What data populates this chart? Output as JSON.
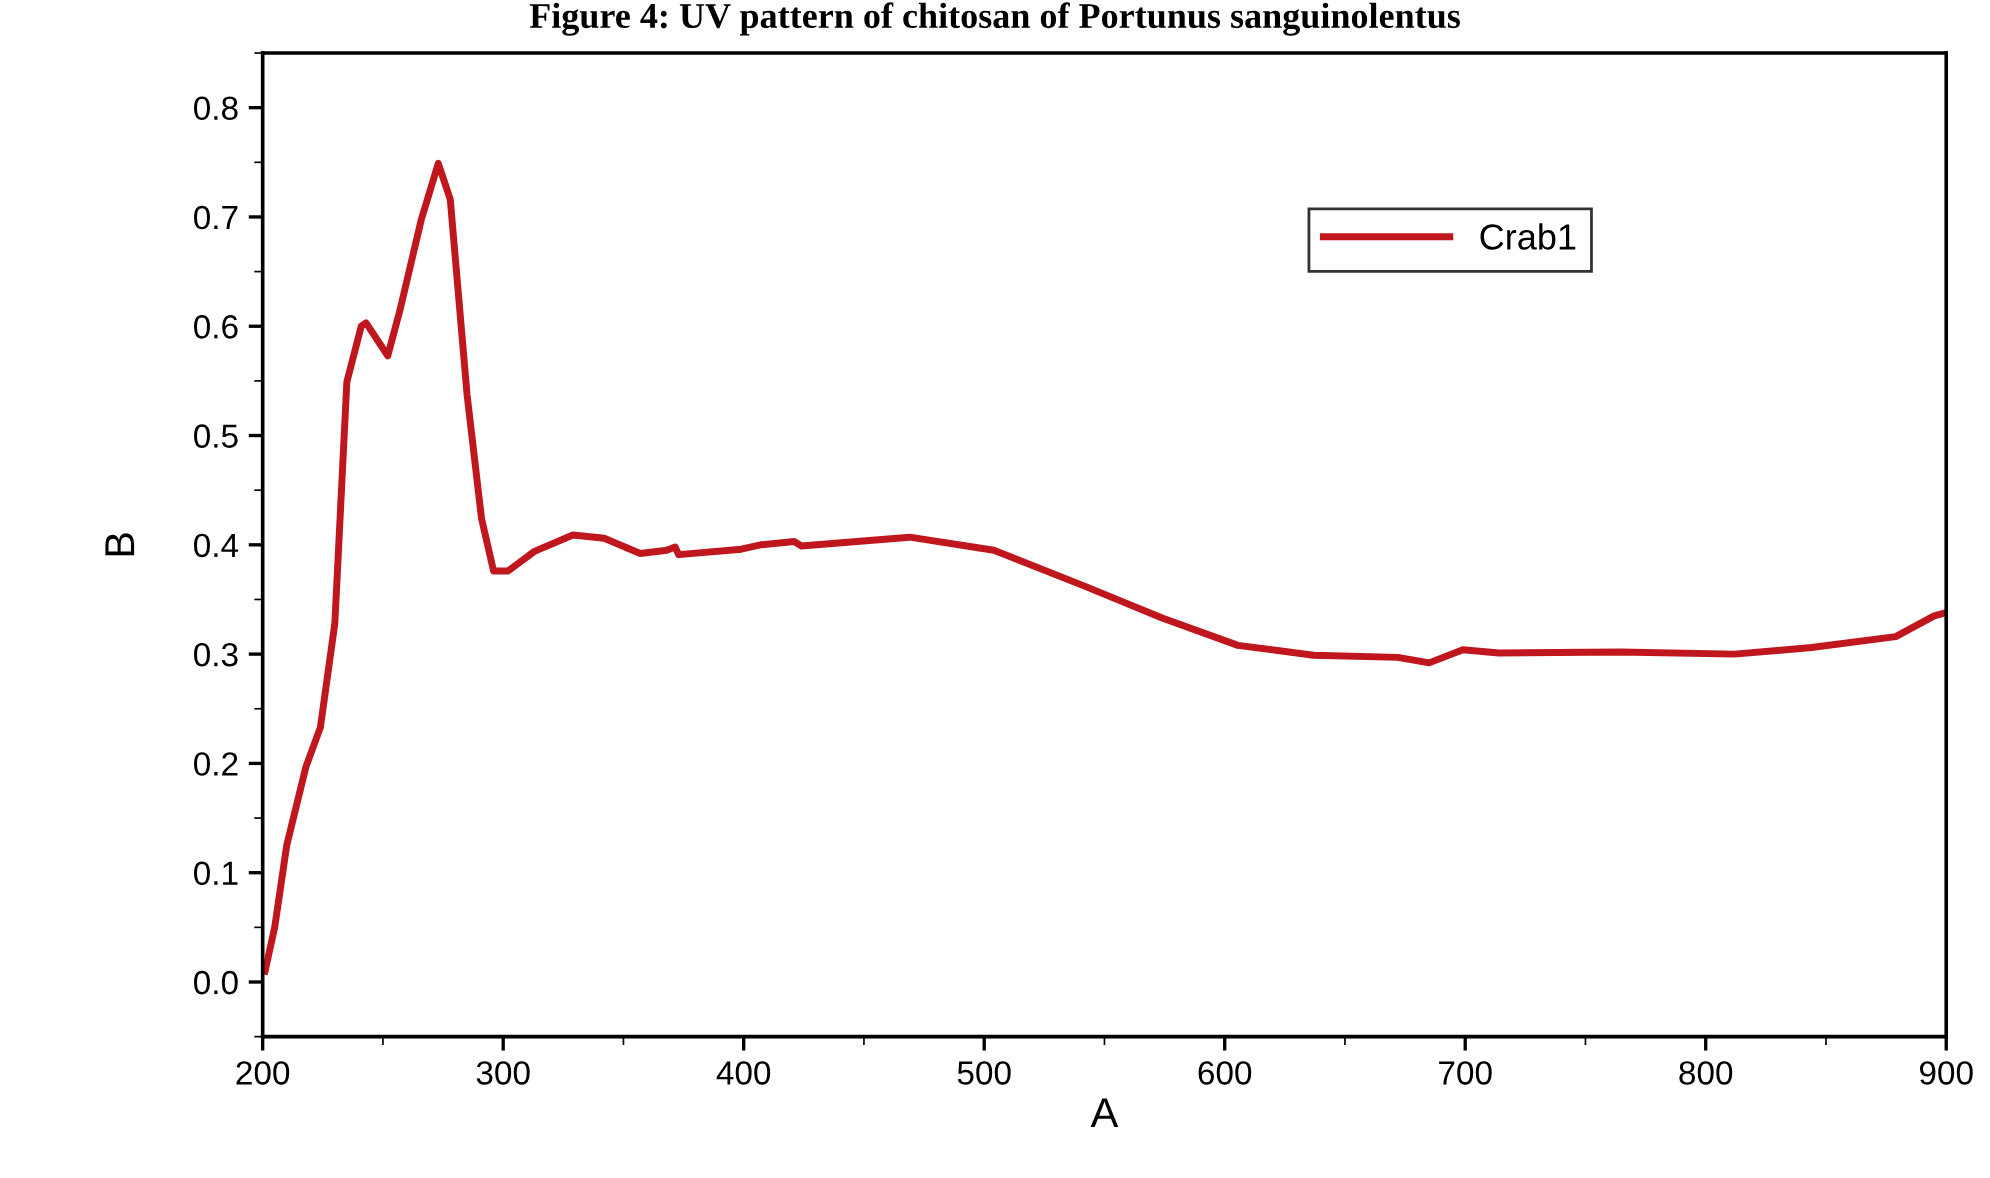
{
  "chart_data": {
    "type": "line",
    "title": "Figure 4: UV pattern of chitosan of Portunus sanguinolentus",
    "xlabel": "A",
    "ylabel": "B",
    "series": [
      {
        "name": "Crab1",
        "color": "#c0161e",
        "x": [
          201,
          205,
          210,
          218,
          224,
          230,
          235,
          241,
          243,
          252,
          257,
          266,
          273,
          278,
          285,
          291,
          296,
          302,
          313,
          329,
          342,
          357,
          368,
          371.5,
          373,
          399,
          407,
          421,
          424,
          469,
          504,
          542,
          574,
          605.5,
          637,
          672,
          685,
          699,
          714,
          764.5,
          812,
          844,
          879,
          895,
          900
        ],
        "values": [
          0.01,
          0.05,
          0.125,
          0.197,
          0.233,
          0.328,
          0.549,
          0.6,
          0.603,
          0.573,
          0.614,
          0.698,
          0.749,
          0.716,
          0.537,
          0.424,
          0.376,
          0.376,
          0.394,
          0.409,
          0.406,
          0.392,
          0.395,
          0.398,
          0.391,
          0.396,
          0.4,
          0.403,
          0.399,
          0.407,
          0.395,
          0.362,
          0.333,
          0.308,
          0.299,
          0.297,
          0.292,
          0.304,
          0.301,
          0.302,
          0.3,
          0.306,
          0.316,
          0.335,
          0.338
        ]
      }
    ],
    "xlim": [
      200,
      900
    ],
    "xticks": [
      200,
      300,
      400,
      500,
      600,
      700,
      800,
      900
    ],
    "ylim": [
      -0.05,
      0.85
    ],
    "yticks": [
      {
        "value": 0,
        "label": "0.0"
      },
      0.1,
      0.2,
      0.3,
      0.4,
      0.5,
      0.6,
      0.7,
      0.8
    ],
    "legend": "top right",
    "grid": false,
    "marker": "none",
    "line_style": "solid"
  }
}
